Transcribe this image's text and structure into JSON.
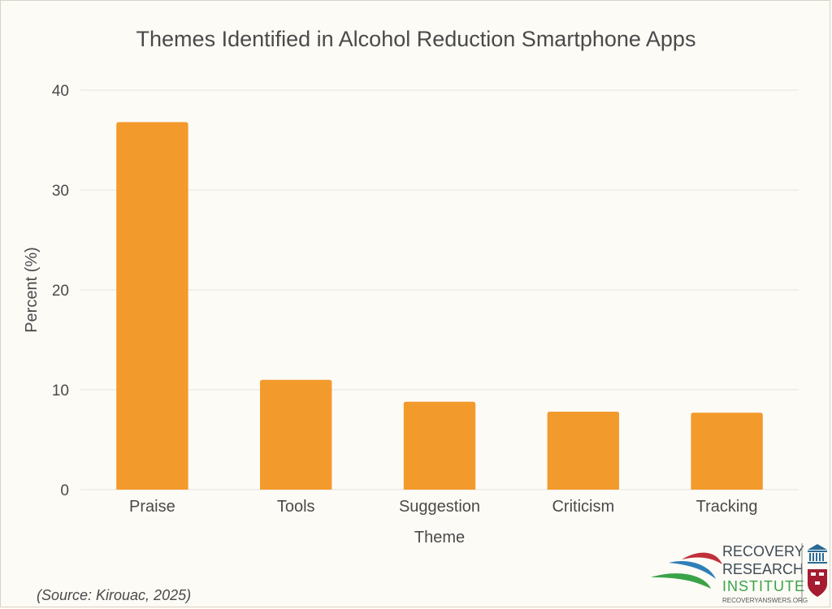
{
  "chart_data": {
    "type": "bar",
    "title": "Themes Identified in Alcohol Reduction Smartphone Apps",
    "xlabel": "Theme",
    "ylabel": "Percent (%)",
    "categories": [
      "Praise",
      "Tools",
      "Suggestion",
      "Criticism",
      "Tracking"
    ],
    "values": [
      36.8,
      11.0,
      8.8,
      7.8,
      7.7
    ],
    "ylim": [
      0,
      40
    ],
    "yticks": [
      0,
      10,
      20,
      30,
      40
    ],
    "grid": true,
    "bar_color": "#f39a2d",
    "gridline_color": "#e3e3e3"
  },
  "source": "(Source: Kirouac, 2025)",
  "logo": {
    "line1": "RECOVERY",
    "line2": "RESEARCH",
    "line3": "INSTITUTE",
    "url": "RECOVERYANSWERS.ORG",
    "colors": {
      "red": "#c0303a",
      "blue": "#2f7fb8",
      "green": "#3aa348",
      "navy": "#2a6a95"
    }
  },
  "background_color": "#fdfbf6"
}
